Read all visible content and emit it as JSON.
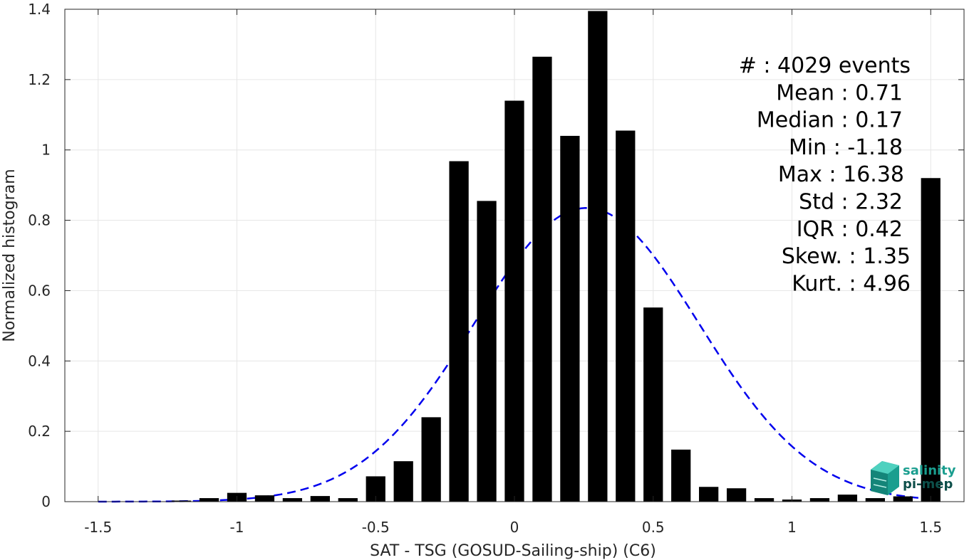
{
  "chart_data": {
    "type": "bar",
    "xlabel": "SAT - TSG (GOSUD-Sailing-ship) (C6)",
    "ylabel": "Normalized histogram",
    "xlim": [
      -1.62,
      1.62
    ],
    "ylim": [
      0,
      1.4
    ],
    "xticks": [
      -1.5,
      -1,
      -0.5,
      0,
      0.5,
      1,
      1.5
    ],
    "xtick_labels": [
      "-1.5",
      "-1",
      "-0.5",
      "0",
      "0.5",
      "1",
      "1.5"
    ],
    "yticks": [
      0,
      0.2,
      0.4,
      0.6,
      0.8,
      1,
      1.2,
      1.4
    ],
    "ytick_labels": [
      "0",
      "0.2",
      "0.4",
      "0.6",
      "0.8",
      "1",
      "1.2",
      "1.4"
    ],
    "grid": true,
    "bar_width": 0.07,
    "x": [
      -1.2,
      -1.1,
      -1.0,
      -0.9,
      -0.8,
      -0.7,
      -0.6,
      -0.5,
      -0.4,
      -0.3,
      -0.2,
      -0.1,
      0.0,
      0.1,
      0.2,
      0.3,
      0.4,
      0.5,
      0.6,
      0.7,
      0.8,
      0.9,
      1.0,
      1.1,
      1.2,
      1.3,
      1.4,
      1.5
    ],
    "values": [
      0.003,
      0.01,
      0.025,
      0.018,
      0.01,
      0.016,
      0.01,
      0.072,
      0.115,
      0.24,
      0.968,
      0.855,
      1.14,
      1.265,
      1.04,
      1.395,
      1.055,
      0.552,
      0.148,
      0.042,
      0.038,
      0.01,
      0.006,
      0.01,
      0.02,
      0.01,
      0.015,
      0.92
    ],
    "fit_curve": {
      "style": "dashed",
      "color": "#0000ee",
      "peak_x": 0.26,
      "peak_y": 0.835,
      "sigma": 0.405,
      "x_from": -1.5,
      "x_to": 1.5
    },
    "stats": [
      "#  : 4029 events",
      "Mean : 0.71",
      "Median : 0.17",
      "Min : -1.18",
      "Max : 16.38",
      "Std : 2.32",
      "IQR : 0.42",
      "Skew. : 1.35",
      "Kurt. : 4.96"
    ],
    "colors": {
      "bars": "#000000",
      "grid": "#e6e6e6",
      "axis": "#262626"
    }
  },
  "logo": {
    "line1": "salinity",
    "line2": "pi-mep",
    "color": "#1a9e8f",
    "color_dark": "#0d4f4a"
  }
}
